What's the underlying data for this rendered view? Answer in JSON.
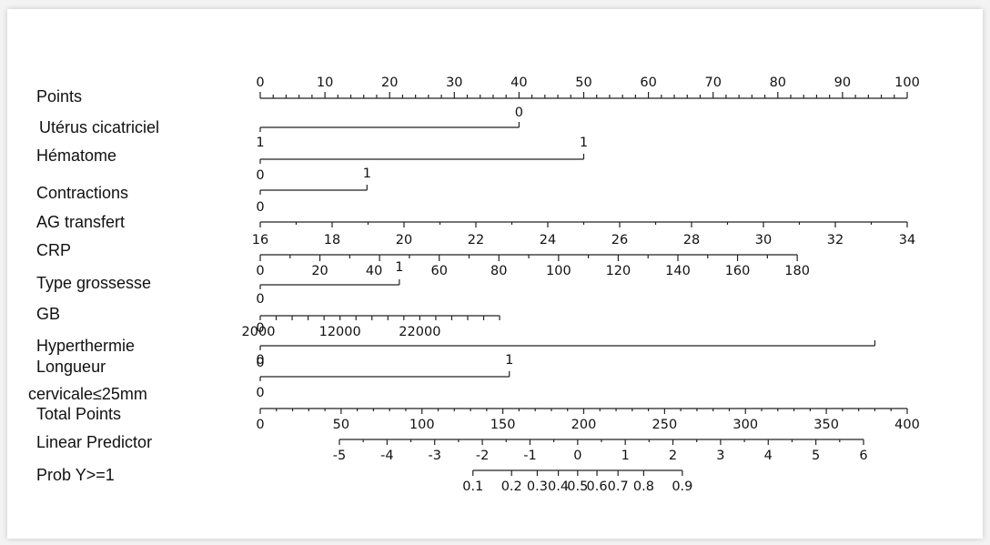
{
  "chart_data": {
    "type": "nomogram",
    "variables": [
      {
        "name": "Points",
        "labels": [
          "Points"
        ],
        "axis": "scale",
        "min": 0,
        "max": 100,
        "ticks": [
          0,
          10,
          20,
          30,
          40,
          50,
          60,
          70,
          80,
          90,
          100
        ]
      },
      {
        "name": "Utérus cicatriciel",
        "labels": [
          "Utérus cicatriciel"
        ],
        "axis": "categorical",
        "levels": [
          {
            "label": "0",
            "points": 40
          },
          {
            "label": "",
            "points": 0
          }
        ]
      },
      {
        "name": "Hématome",
        "labels": [
          "Hématome"
        ],
        "axis": "categorical",
        "levels": [
          {
            "label": "1",
            "points": 0
          },
          {
            "label": "1",
            "points": 50
          }
        ]
      },
      {
        "name": "Contractions",
        "labels": [
          "Contractions"
        ],
        "axis": "categorical",
        "levels": [
          {
            "label": "0",
            "points": 0
          },
          {
            "label": "1",
            "points": 16.5
          }
        ]
      },
      {
        "name": "AG transfert",
        "labels": [
          "AG transfert"
        ],
        "axis": "scale",
        "first_label": "0",
        "ticks": [
          16,
          18,
          20,
          22,
          24,
          26,
          28,
          30,
          32,
          34
        ],
        "points_range": [
          0,
          100
        ]
      },
      {
        "name": "CRP",
        "labels": [
          "CRP"
        ],
        "axis": "scale",
        "ticks": [
          0,
          20,
          40,
          60,
          80,
          100,
          120,
          140,
          160,
          180
        ],
        "points_range": [
          0,
          83
        ]
      },
      {
        "name": "Type grossesse",
        "labels": [
          "Type grossesse"
        ],
        "axis": "categorical",
        "levels": [
          {
            "label": "0",
            "points": 0
          },
          {
            "label": "1",
            "points": 21.5
          }
        ]
      },
      {
        "name": "GB",
        "labels": [
          "GB"
        ],
        "axis": "scale",
        "ticks": [
          2000,
          12000,
          22000
        ],
        "points_range": [
          0,
          37
        ]
      },
      {
        "name": "Hyperthermie",
        "labels": [
          "Hyperthermie"
        ],
        "axis": "categorical",
        "levels": [
          {
            "label": "0",
            "points": 0
          },
          {
            "label": "1",
            "points": 95
          }
        ]
      },
      {
        "name": "Longueur cervicale≤25mm",
        "labels": [
          "Longueur",
          "cervicale≤25mm"
        ],
        "axis": "categorical",
        "levels": [
          {
            "label": "0",
            "points": 0
          },
          {
            "label": "1",
            "points": 38.5
          }
        ]
      },
      {
        "name": "Total Points",
        "labels": [
          "Total Points"
        ],
        "axis": "scale",
        "ticks": [
          0,
          50,
          100,
          150,
          200,
          250,
          300,
          350,
          400
        ]
      },
      {
        "name": "Linear Predictor",
        "labels": [
          "Linear Predictor"
        ],
        "axis": "scale",
        "ticks": [
          -5,
          -4,
          -3,
          -2,
          -1,
          0,
          1,
          2,
          3,
          4,
          5,
          6
        ]
      },
      {
        "name": "Prob Y>=1",
        "labels": [
          "Prob Y>=1"
        ],
        "axis": "probability",
        "ticks": [
          0.1,
          0.2,
          0.3,
          0.4,
          0.5,
          0.6,
          0.7,
          0.8,
          0.9
        ],
        "tick_labels": [
          "0.1",
          "0.2",
          "0.3",
          "0.4",
          "0.5",
          "0.6",
          "0.7",
          "0.8",
          "0.9"
        ]
      }
    ]
  }
}
